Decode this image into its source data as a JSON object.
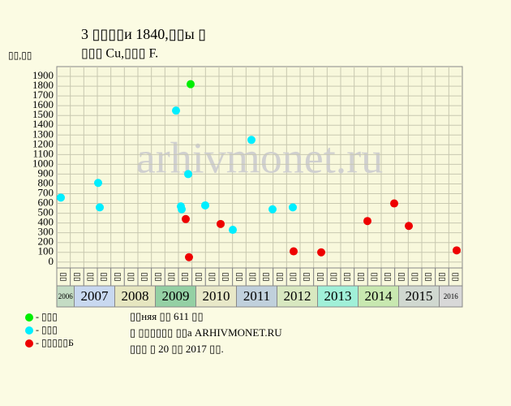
{
  "chart_data": {
    "type": "scatter",
    "title": "3 ▯▯▯▯и 1840,▯▯ы ▯",
    "subtitle": "▯▯▯ Cu,▯▯▯ F.",
    "y_label": "▯▯,▯▯",
    "watermark": "arhivmonet.ru",
    "xlim": [
      2006.57,
      2016.57
    ],
    "ylim": [
      -60,
      2000
    ],
    "yticks": [
      0,
      100,
      200,
      300,
      400,
      500,
      600,
      700,
      800,
      900,
      1000,
      1100,
      1200,
      1300,
      1400,
      1500,
      1600,
      1700,
      1800,
      1900
    ],
    "xticks": [
      {
        "value": 2006,
        "label": "2006"
      },
      {
        "value": 2007,
        "label": "2007"
      },
      {
        "value": 2008,
        "label": "2008"
      },
      {
        "value": 2009,
        "label": "2009"
      },
      {
        "value": 2010,
        "label": "2010"
      },
      {
        "value": 2011,
        "label": "2011"
      },
      {
        "value": 2012,
        "label": "2012"
      },
      {
        "value": 2013,
        "label": "2013"
      },
      {
        "value": 2014,
        "label": "2014"
      },
      {
        "value": 2015,
        "label": "2015"
      },
      {
        "value": 2016,
        "label": "2016"
      }
    ],
    "year_colors": [
      "#c4dcc4",
      "#c8d8f0",
      "#e6e6c0",
      "#94d0a4",
      "#e8e8c8",
      "#c0d0dc",
      "#d8e8c0",
      "#a0f0d8",
      "#c8e8b0",
      "#d0d8d0",
      "#d8d8d8"
    ],
    "period_labels": [
      "▯▯",
      "▯▯",
      "▯▯",
      "▯▯",
      "▯▯",
      "▯▯",
      "▯▯",
      "▯▯",
      "▯▯",
      "▯▯",
      "▯▯",
      "▯▯",
      "▯▯",
      "▯▯",
      "▯▯",
      "▯▯",
      "▯▯",
      "▯▯",
      "▯▯",
      "▯▯",
      "▯▯",
      "▯▯",
      "▯▯",
      "▯▯",
      "▯▯",
      "▯▯",
      "▯▯",
      "▯▯",
      "▯▯",
      "▯▯"
    ],
    "grid": true,
    "series": [
      {
        "name": "- ▯▯▯",
        "color": "#00ee00",
        "x": [
          2009.87
        ],
        "values": [
          1820
        ]
      },
      {
        "name": "- ▯▯▯",
        "color": "#00eeff",
        "x": [
          2006.67,
          2007.59,
          2007.63,
          2009.51,
          2009.63,
          2009.65,
          2009.81,
          2010.23,
          2010.91,
          2011.37,
          2011.89,
          2012.39
        ],
        "values": [
          660,
          810,
          560,
          1550,
          570,
          540,
          900,
          580,
          330,
          1250,
          540,
          560
        ]
      },
      {
        "name": "- ▯▯▯▯▯Б",
        "color": "#ee0000",
        "x": [
          2009.75,
          2009.83,
          2010.61,
          2012.41,
          2013.09,
          2014.23,
          2014.89,
          2015.25,
          2016.43
        ],
        "values": [
          440,
          50,
          390,
          110,
          100,
          420,
          600,
          370,
          120
        ]
      }
    ],
    "footer": [
      "▯▯няя ▯▯ 611 ▯▯",
      "▯ ▯▯▯▯▯▯ ▯▯а ARHIVMONET.RU",
      "▯▯▯ ▯ 20 ▯▯ 2017 ▯▯."
    ]
  }
}
